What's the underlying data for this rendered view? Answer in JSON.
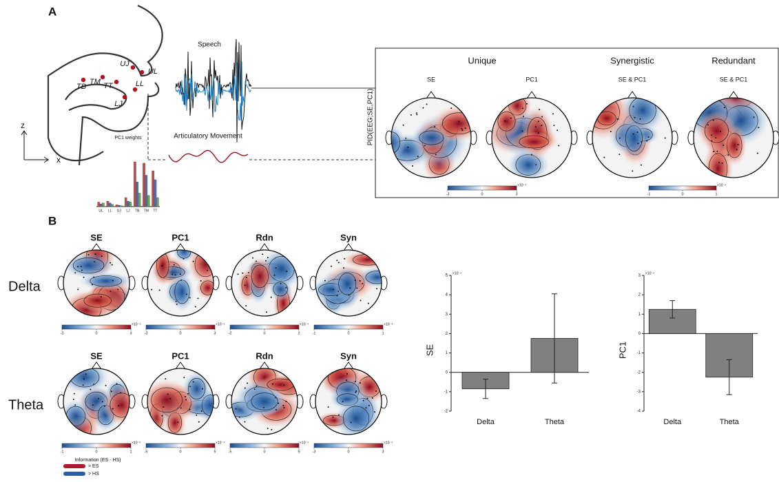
{
  "panel_a": {
    "label": "A",
    "vocal_tract_labels": [
      "UJ",
      "UL",
      "TB",
      "TM",
      "TT",
      "LL",
      "LJ"
    ],
    "axis_labels": [
      "z",
      "x"
    ],
    "speech_label": "Speech",
    "movement_label": "Articulatory Movement",
    "pid_label": "PID(EEG;SE,PC1)",
    "groups": [
      {
        "title": "Unique",
        "maps": [
          "SE",
          "PC1"
        ]
      },
      {
        "title": "Synergistic",
        "maps": [
          "SE & PC1"
        ]
      },
      {
        "title": "Redundant",
        "maps": [
          "SE & PC1"
        ]
      }
    ],
    "colorbars": [
      {
        "lim": [
          -3,
          3
        ],
        "ticks": [
          -3,
          0,
          3
        ],
        "exponent": "×10⁻⁴"
      },
      {
        "lim": [
          -1,
          1
        ],
        "ticks": [
          -1,
          0,
          1
        ],
        "exponent": "×10⁻⁴"
      }
    ]
  },
  "panel_b": {
    "label": "B",
    "rows": [
      "Delta",
      "Theta"
    ],
    "columns": [
      "SE",
      "PC1",
      "Rdn",
      "Syn"
    ],
    "colorbars": [
      [
        {
          "lim": [
            -3,
            3
          ],
          "ticks": [
            -3,
            0,
            3
          ],
          "exponent": "×10⁻⁴"
        },
        {
          "lim": [
            -3,
            3
          ],
          "ticks": [
            -3,
            0,
            3
          ],
          "exponent": "×10⁻⁴"
        },
        {
          "lim": [
            -2,
            2
          ],
          "ticks": [
            -2,
            0,
            2
          ],
          "exponent": "×10⁻⁴"
        },
        {
          "lim": [
            -1,
            1
          ],
          "ticks": [
            -1,
            0,
            1
          ],
          "exponent": "×10⁻⁴"
        }
      ],
      [
        {
          "lim": [
            -1,
            1
          ],
          "ticks": [
            -1,
            0,
            1
          ],
          "exponent": "×10⁻³"
        },
        {
          "lim": [
            -5,
            5
          ],
          "ticks": [
            -5,
            0,
            5
          ],
          "exponent": "×10⁻⁴"
        },
        {
          "lim": [
            -5,
            5
          ],
          "ticks": [
            -5,
            0,
            5
          ],
          "exponent": "×10⁻⁴"
        },
        {
          "lim": [
            -3,
            3
          ],
          "ticks": [
            -3,
            0,
            3
          ],
          "exponent": "×10⁻⁴"
        }
      ]
    ],
    "colorbar_label": "Information (ES - HS)",
    "legend": [
      {
        "label": "> ES",
        "color": "#b5172e"
      },
      {
        "label": "> HS",
        "color": "#2a5fa8"
      }
    ]
  },
  "chart_data": [
    {
      "type": "bar",
      "ylabel": "SE",
      "exponent": "×10⁻⁴",
      "categories": [
        "Delta",
        "Theta"
      ],
      "values": [
        -0.85,
        1.75
      ],
      "errors": [
        0.5,
        2.3
      ],
      "color": "#808080",
      "ylim": [
        -2,
        5
      ],
      "yticks": [
        -2,
        -1,
        0,
        1,
        2,
        3,
        4,
        5
      ]
    },
    {
      "type": "bar",
      "ylabel": "PC1",
      "exponent": "×10⁻⁴",
      "categories": [
        "Delta",
        "Theta"
      ],
      "values": [
        1.25,
        -2.25
      ],
      "errors": [
        0.45,
        0.9
      ],
      "color": "#808080",
      "ylim": [
        -4,
        3
      ],
      "yticks": [
        -4,
        -3,
        -2,
        -1,
        0,
        1,
        2,
        3
      ]
    },
    {
      "type": "grouped",
      "title": "PC1 weights",
      "categories": [
        "UL",
        "LL",
        "UJ",
        "LJ",
        "TB",
        "TM",
        "TT"
      ],
      "ylim": [
        0,
        1
      ],
      "series": [
        {
          "color": "#c0504d",
          "values": [
            0.1,
            0.12,
            0.04,
            0.2,
            1.0,
            0.97,
            0.8
          ]
        },
        {
          "color": "#4f6fb5",
          "values": [
            0.06,
            0.08,
            0.03,
            0.12,
            0.55,
            0.7,
            0.6
          ]
        },
        {
          "color": "#6aa84f",
          "values": [
            0.08,
            0.05,
            0.02,
            0.1,
            0.3,
            0.25,
            0.2
          ]
        }
      ]
    }
  ]
}
